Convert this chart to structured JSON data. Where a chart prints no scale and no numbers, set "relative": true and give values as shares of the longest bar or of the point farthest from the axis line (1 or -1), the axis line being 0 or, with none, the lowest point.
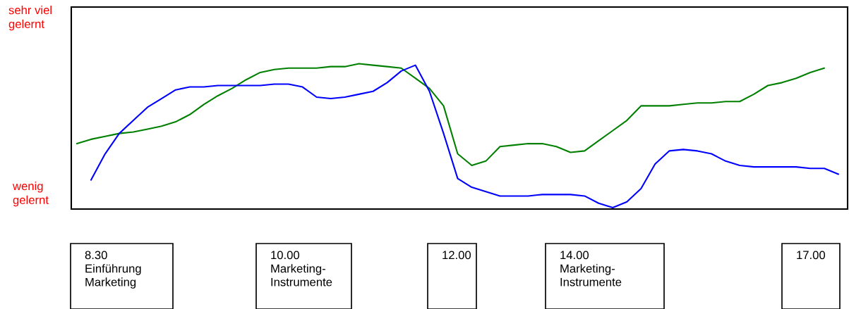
{
  "chart_data": {
    "type": "line",
    "relative": true,
    "categories": [
      null,
      null,
      null,
      null,
      null,
      null,
      null,
      null,
      null,
      null,
      null,
      null,
      null,
      null,
      null,
      null,
      null,
      null,
      null,
      null,
      null,
      null,
      null,
      null,
      null,
      null,
      null,
      null,
      null,
      null,
      null,
      null,
      null,
      null,
      null,
      null,
      null,
      null,
      null,
      null,
      null,
      null,
      null,
      null,
      null,
      null,
      null,
      null,
      null,
      null,
      null,
      null,
      null,
      null,
      null
    ],
    "series": [
      {
        "color": "#008000",
        "values": [
          0.45,
          0.48,
          0.5,
          0.52,
          0.53,
          0.55,
          0.57,
          0.6,
          0.65,
          0.72,
          0.78,
          0.83,
          0.89,
          0.94,
          0.96,
          0.97,
          0.97,
          0.97,
          0.98,
          0.98,
          1.0,
          0.99,
          0.98,
          0.97,
          0.9,
          0.83,
          0.71,
          0.38,
          0.3,
          0.33,
          0.43,
          0.44,
          0.45,
          0.45,
          0.43,
          0.39,
          0.4,
          0.47,
          0.54,
          0.61,
          0.71,
          0.71,
          0.71,
          0.72,
          0.73,
          0.73,
          0.74,
          0.74,
          0.79,
          0.85,
          0.87,
          0.9,
          0.94,
          0.97,
          null
        ]
      },
      {
        "color": "#0000ff",
        "values": [
          null,
          0.2,
          0.38,
          0.52,
          0.61,
          0.7,
          0.76,
          0.82,
          0.84,
          0.84,
          0.85,
          0.85,
          0.85,
          0.85,
          0.86,
          0.86,
          0.84,
          0.77,
          0.76,
          0.77,
          0.79,
          0.81,
          0.87,
          0.95,
          0.99,
          0.81,
          0.52,
          0.21,
          0.15,
          0.12,
          0.09,
          0.09,
          0.09,
          0.1,
          0.1,
          0.1,
          0.09,
          0.04,
          0.01,
          0.05,
          0.14,
          0.31,
          0.4,
          0.41,
          0.4,
          0.38,
          0.33,
          0.3,
          0.29,
          0.29,
          0.29,
          0.29,
          0.28,
          0.28,
          0.24
        ]
      }
    ],
    "annotations": [
      "sehr viel\ngelernt",
      "wenig\ngelernt",
      "8.30\nEinführung\nMarketing",
      "10.00\nMarketing-\nInstrumente",
      "12.00",
      "14.00\nMarketing-\nInstrumente",
      "17.00"
    ]
  }
}
